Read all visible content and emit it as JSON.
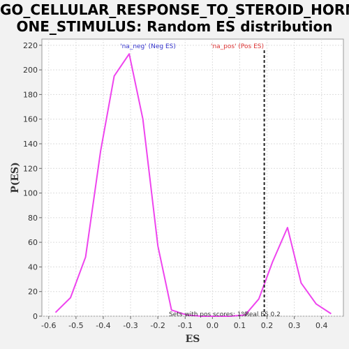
{
  "title_line1": "GO_CELLULAR_RESPONSE_TO_STEROID_HORM",
  "title_line2": "ONE_STIMULUS: Random ES distribution",
  "chart_data": {
    "type": "line",
    "xlabel": "ES",
    "ylabel": "P(ES)",
    "xlim": [
      -0.625,
      0.48
    ],
    "ylim": [
      0,
      225
    ],
    "xticks": [
      -0.6,
      -0.5,
      -0.4,
      -0.3,
      -0.2,
      -0.1,
      0.0,
      0.1,
      0.2,
      0.3,
      0.4
    ],
    "xtick_labels": [
      "-0.6",
      "-0.5",
      "-0.4",
      "-0.3",
      "-0.2",
      "-0.1",
      "0.0",
      "0.1",
      "0.2",
      "0.3",
      "0.4"
    ],
    "yticks": [
      0,
      20,
      40,
      60,
      80,
      100,
      120,
      140,
      160,
      180,
      200,
      220
    ],
    "ytick_labels": [
      "0",
      "20",
      "40",
      "60",
      "80",
      "100",
      "120",
      "140",
      "160",
      "180",
      "200",
      "220"
    ],
    "grid": true,
    "series": [
      {
        "color": "#ee44ee",
        "x": [
          -0.575,
          -0.52,
          -0.465,
          -0.41,
          -0.36,
          -0.305,
          -0.255,
          -0.2,
          -0.15,
          -0.095,
          -0.04,
          0.01,
          0.065,
          0.12,
          0.17,
          0.22,
          0.275,
          0.325,
          0.38,
          0.435
        ],
        "y": [
          3,
          15,
          48,
          134,
          195,
          213,
          160,
          57,
          5,
          1,
          0,
          0,
          0,
          1,
          14,
          44,
          72,
          27,
          10,
          2
        ]
      }
    ],
    "real_es": 0.19,
    "legend": [
      {
        "label": "'na_neg' (Neg ES)",
        "color": "#3333cc"
      },
      {
        "label": "'na_pos' (Pos ES)",
        "color": "#dd3333"
      }
    ],
    "annotations": {
      "pos_scores": "Sets with pos scores: 1%",
      "real_es": "Real ES 0.2"
    }
  }
}
